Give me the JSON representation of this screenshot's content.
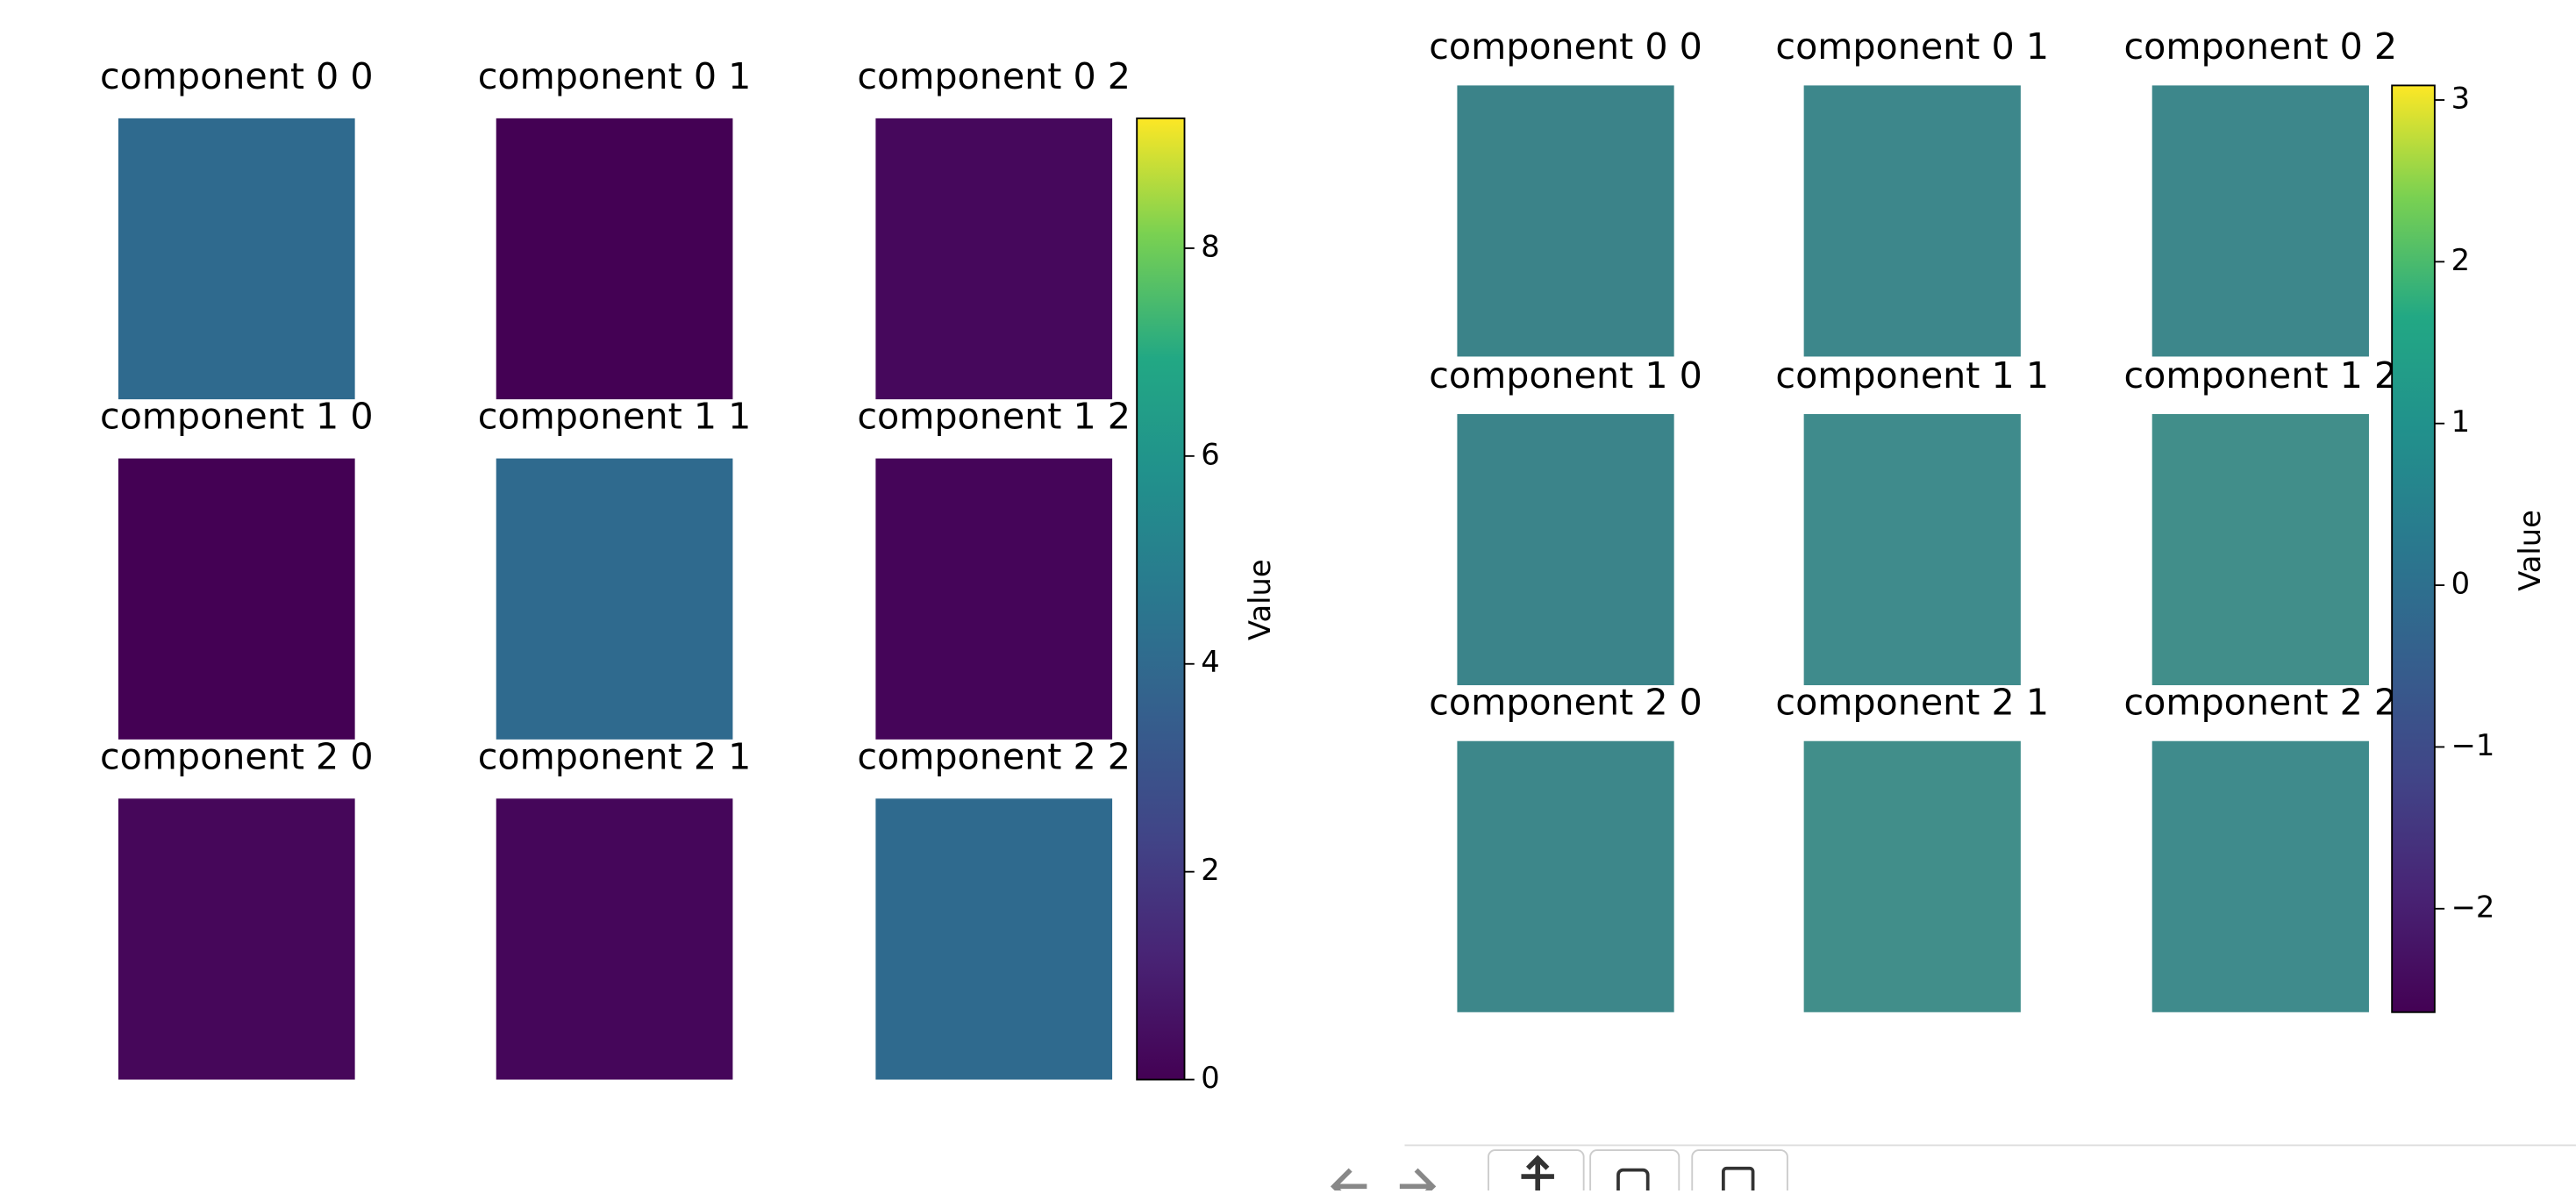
{
  "chart_data": [
    {
      "type": "image-grid",
      "panels": [
        {
          "title": "component 0 0",
          "color": "#2f6a8e"
        },
        {
          "title": "component 0 1",
          "color": "#440154"
        },
        {
          "title": "component 0 2",
          "color": "#46085c"
        },
        {
          "title": "component 1 0",
          "color": "#440154"
        },
        {
          "title": "component 1 1",
          "color": "#2f6a8e"
        },
        {
          "title": "component 1 2",
          "color": "#450559"
        },
        {
          "title": "component 2 0",
          "color": "#46075a"
        },
        {
          "title": "component 2 1",
          "color": "#45065a"
        },
        {
          "title": "component 2 2",
          "color": "#2f6a8e"
        }
      ],
      "colorbar_label": "Value",
      "clim": [
        0,
        9.25
      ],
      "ticks": [
        0,
        2,
        4,
        6,
        8
      ]
    },
    {
      "type": "image-grid",
      "panels": [
        {
          "title": "component 0 0",
          "color": "#3b8389"
        },
        {
          "title": "component 0 1",
          "color": "#3d878b"
        },
        {
          "title": "component 0 2",
          "color": "#3d878b"
        },
        {
          "title": "component 1 0",
          "color": "#3b848a"
        },
        {
          "title": "component 1 1",
          "color": "#3f8b8c"
        },
        {
          "title": "component 1 2",
          "color": "#418e8a"
        },
        {
          "title": "component 2 0",
          "color": "#3d878a"
        },
        {
          "title": "component 2 1",
          "color": "#418e8a"
        },
        {
          "title": "component 2 2",
          "color": "#3f8b8c"
        }
      ],
      "colorbar_label": "Value",
      "clim": [
        -2.64,
        3.09
      ],
      "ticks": [
        {
          "value": -2,
          "label": "−2"
        },
        {
          "value": -1,
          "label": "−1"
        },
        0,
        1,
        2,
        3
      ]
    }
  ]
}
